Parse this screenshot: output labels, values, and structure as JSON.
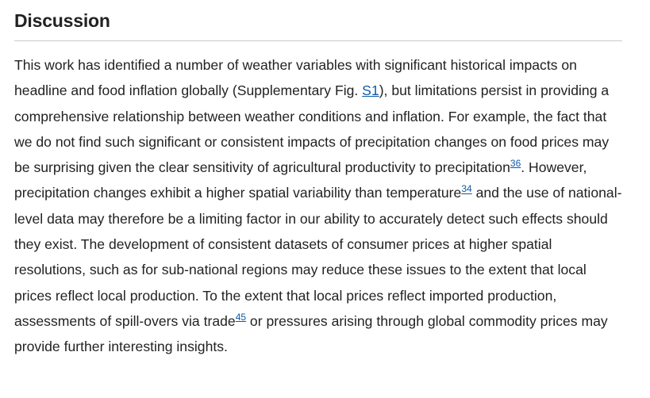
{
  "heading": "Discussion",
  "paragraph": {
    "t1": "This work has identified a number of weather variables with significant historical impacts on headline and food inflation globally (Supplementary Fig. ",
    "link_s1": "S1",
    "t2": "), but limitations persist in providing a comprehensive relationship between weather conditions and inflation. For example, the fact that we do not find such significant or consistent impacts of precipitation changes on food prices may be surprising given the clear sensitivity of agricultural productivity to precipitation",
    "ref_36": "36",
    "t3": ". However, precipitation changes exhibit a higher spatial variability than temperature",
    "ref_34": "34",
    "t4": " and the use of national-level data may therefore be a limiting factor in our ability to accurately detect such effects should they exist. The development of consistent datasets of consumer prices at higher spatial resolutions, such as for sub-national regions may reduce these issues to the extent that local prices reflect local production. To the extent that local prices reflect imported production, assessments of spill-overs via trade",
    "ref_45": "45",
    "t5": " or pressures arising through global commodity prices may provide further interesting insights."
  },
  "colors": {
    "text": "#222222",
    "link": "#0e5aa7",
    "rule": "#c9c9c9"
  }
}
